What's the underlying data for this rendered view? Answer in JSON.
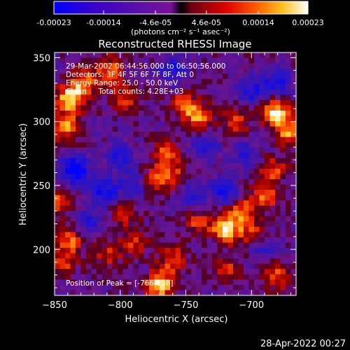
{
  "colorbar": {
    "tick_labels": [
      "-0.00023",
      "-0.00014",
      "-4.6e-05",
      "4.6e-05",
      "0.00014",
      "0.00023"
    ],
    "tick_values": [
      -0.00023,
      -0.00014,
      -4.6e-05,
      4.6e-05,
      0.00014,
      0.00023
    ],
    "range": [
      -0.00023,
      0.00023
    ],
    "units_label": "(photons cm⁻² s⁻¹ asec⁻²)",
    "colors": [
      "#0000ff",
      "#3a00cc",
      "#6a00a0",
      "#a000a0",
      "#ff0000",
      "#ff8000",
      "#ffe060",
      "#ffffff"
    ]
  },
  "chart_data": {
    "type": "heatmap",
    "title": "Reconstructed RHESSI Image",
    "xlabel": "Heliocentric X (arcsec)",
    "ylabel": "Heliocentric Y (arcsec)",
    "xlim": [
      -850,
      -666
    ],
    "ylim": [
      164,
      354
    ],
    "x_ticks": [
      -850,
      -800,
      -750,
      -700
    ],
    "y_ticks": [
      200,
      250,
      300,
      350
    ],
    "x_tick_labels": [
      "−850",
      "−800",
      "−750",
      "−700"
    ],
    "y_tick_labels": [
      "200",
      "250",
      "300",
      "350"
    ],
    "annotations": [
      "29-Mar-2002 06:44:56.000 to 06:50:56.000",
      "Detectors: 3F 4F 5F 6F 7F 8F, Att 0",
      "Energy Range: 25.0 - 50.0 keV",
      "Clean     Total counts: 4.28E+03"
    ],
    "peak_label": "Position of Peak = [-766,168]",
    "peak": [
      -766,
      168
    ],
    "hot_spots": [
      {
        "x": -838,
        "y": 318,
        "value": 0.00023
      },
      {
        "x": -842,
        "y": 296,
        "value": 0.00018
      },
      {
        "x": -808,
        "y": 340,
        "value": 0.00016
      },
      {
        "x": -797,
        "y": 318,
        "value": 0.00012
      },
      {
        "x": -752,
        "y": 313,
        "value": 0.00014
      },
      {
        "x": -740,
        "y": 303,
        "value": 0.00017
      },
      {
        "x": -712,
        "y": 299,
        "value": 0.00012
      },
      {
        "x": -682,
        "y": 307,
        "value": 0.00023
      },
      {
        "x": -670,
        "y": 292,
        "value": 0.00019
      },
      {
        "x": -683,
        "y": 262,
        "value": 0.00013
      },
      {
        "x": -766,
        "y": 276,
        "value": 0.00012
      },
      {
        "x": -772,
        "y": 255,
        "value": 0.00014
      },
      {
        "x": -760,
        "y": 260,
        "value": 0.0001
      },
      {
        "x": -828,
        "y": 330,
        "value": 0.00016
      },
      {
        "x": -848,
        "y": 238,
        "value": 0.00013
      },
      {
        "x": -838,
        "y": 208,
        "value": 0.00016
      },
      {
        "x": -844,
        "y": 190,
        "value": 0.00012
      },
      {
        "x": -720,
        "y": 216,
        "value": 0.00023
      },
      {
        "x": -708,
        "y": 230,
        "value": 0.00016
      },
      {
        "x": -700,
        "y": 213,
        "value": 0.00012
      },
      {
        "x": -742,
        "y": 223,
        "value": 0.00012
      },
      {
        "x": -690,
        "y": 241,
        "value": 0.00014
      },
      {
        "x": -796,
        "y": 228,
        "value": 0.0001
      },
      {
        "x": -770,
        "y": 172,
        "value": 0.00023
      },
      {
        "x": -760,
        "y": 192,
        "value": 0.00014
      },
      {
        "x": -790,
        "y": 205,
        "value": 0.00012
      },
      {
        "x": -680,
        "y": 180,
        "value": 0.00015
      },
      {
        "x": -718,
        "y": 185,
        "value": 0.00011
      },
      {
        "x": -810,
        "y": 196,
        "value": 0.0001
      }
    ],
    "cold_spots": [
      {
        "x": -835,
        "y": 262,
        "value": -0.00023
      },
      {
        "x": -812,
        "y": 245,
        "value": -0.00016
      },
      {
        "x": -800,
        "y": 274,
        "value": -0.00014
      },
      {
        "x": -720,
        "y": 245,
        "value": -0.00016
      },
      {
        "x": -790,
        "y": 250,
        "value": -0.00012
      },
      {
        "x": -745,
        "y": 240,
        "value": -0.00012
      },
      {
        "x": -760,
        "y": 340,
        "value": -0.00014
      },
      {
        "x": -700,
        "y": 325,
        "value": -0.00014
      },
      {
        "x": -825,
        "y": 220,
        "value": -0.00012
      },
      {
        "x": -735,
        "y": 280,
        "value": -0.00012
      },
      {
        "x": -705,
        "y": 275,
        "value": -0.0001
      },
      {
        "x": -680,
        "y": 330,
        "value": -0.00014
      },
      {
        "x": -690,
        "y": 200,
        "value": -0.0001
      }
    ]
  },
  "footer": {
    "timestamp": "28-Apr-2022 00:27"
  }
}
